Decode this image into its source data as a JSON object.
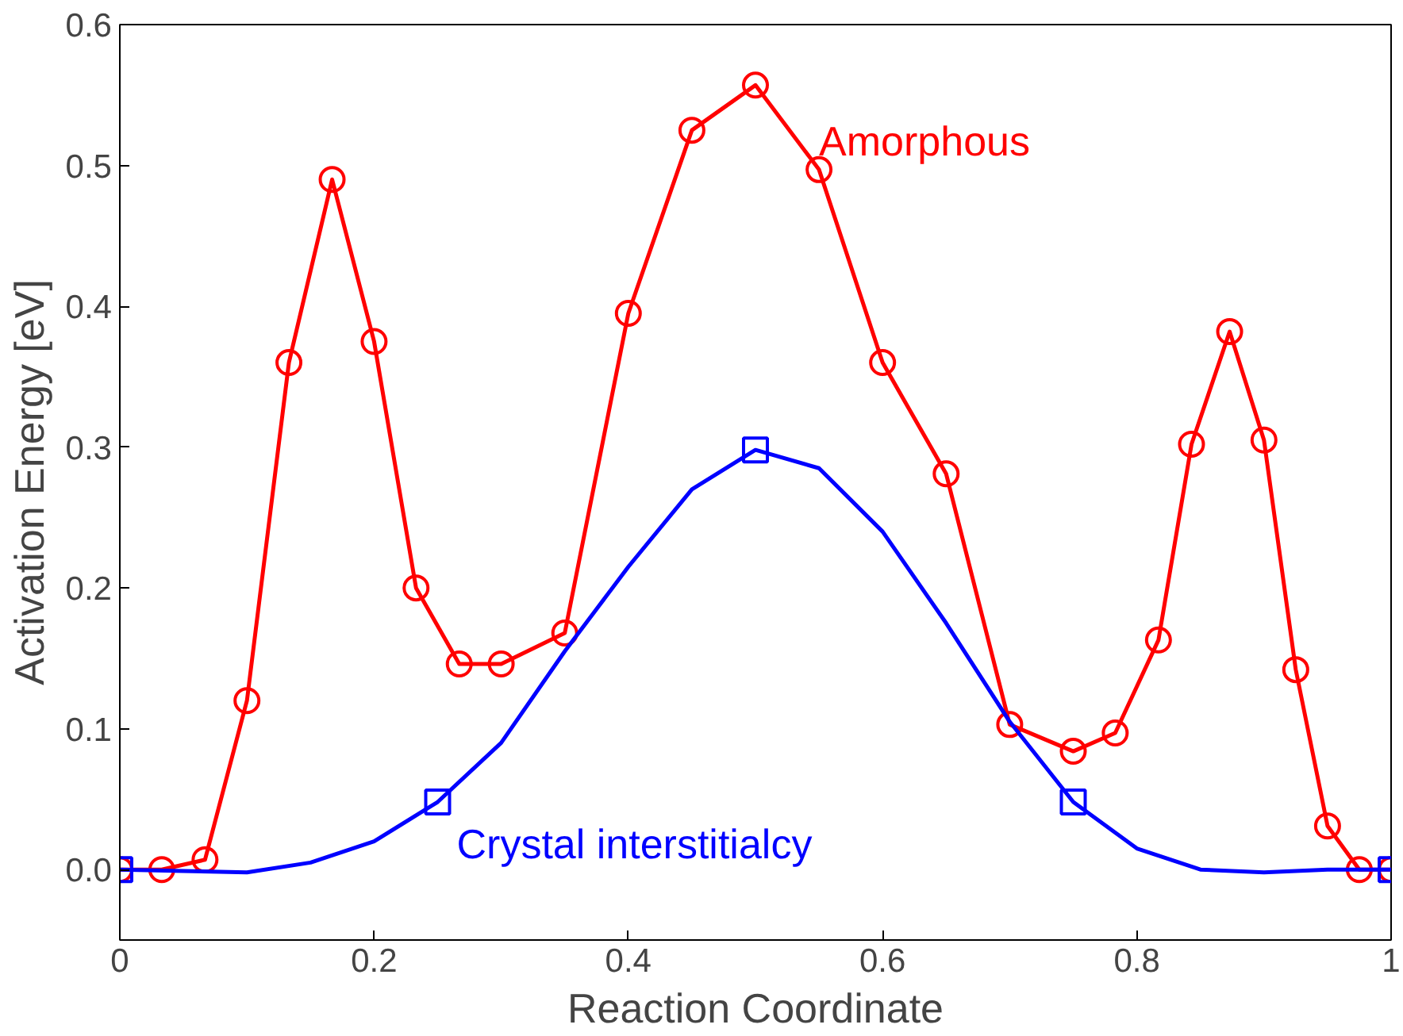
{
  "chart_data": {
    "type": "line",
    "xlabel": "Reaction Coordinate",
    "ylabel": "Activation Energy [eV]",
    "xlim": [
      0,
      1
    ],
    "xticks": [
      0,
      0.2,
      0.4,
      0.6,
      0.8,
      1
    ],
    "ylim": [
      -0.05,
      0.6
    ],
    "yticks": [
      {
        "value": 0,
        "label": "0.0"
      },
      0.1,
      0.2,
      0.3,
      0.4,
      0.5,
      0.6
    ],
    "line_style": "solid",
    "series": [
      {
        "name": "Amorphous",
        "color": "#ff0000",
        "marker": "circle",
        "x": [
          0,
          0.033,
          0.067,
          0.1,
          0.133,
          0.167,
          0.2,
          0.233,
          0.267,
          0.3,
          0.35,
          0.4,
          0.45,
          0.5,
          0.55,
          0.6,
          0.65,
          0.7,
          0.75,
          0.783,
          0.817,
          0.843,
          0.873,
          0.9,
          0.925,
          0.95,
          0.975,
          1
        ],
        "values": [
          0,
          0,
          0.007,
          0.12,
          0.36,
          0.49,
          0.375,
          0.2,
          0.146,
          0.146,
          0.168,
          0.395,
          0.525,
          0.557,
          0.497,
          0.36,
          0.281,
          0.103,
          0.084,
          0.097,
          0.163,
          0.302,
          0.382,
          0.305,
          0.142,
          0.031,
          0,
          0
        ]
      },
      {
        "name": "Crystal interstitialcy",
        "color": "#0000ff",
        "marker": "none",
        "x": [
          0,
          0.05,
          0.1,
          0.15,
          0.2,
          0.25,
          0.3,
          0.35,
          0.4,
          0.45,
          0.5,
          0.55,
          0.6,
          0.65,
          0.7,
          0.75,
          0.8,
          0.85,
          0.9,
          0.95,
          1
        ],
        "values": [
          0,
          -0.001,
          -0.002,
          0.005,
          0.02,
          0.048,
          0.09,
          0.155,
          0.215,
          0.27,
          0.298,
          0.285,
          0.24,
          0.175,
          0.105,
          0.048,
          0.015,
          0,
          -0.002,
          0,
          0
        ]
      },
      {
        "type": "scatter",
        "color": "#0000ff",
        "marker": "square",
        "x": [
          0,
          0.25,
          0.5,
          0.75,
          1
        ],
        "values": [
          0,
          0.048,
          0.298,
          0.048,
          0
        ]
      }
    ]
  }
}
